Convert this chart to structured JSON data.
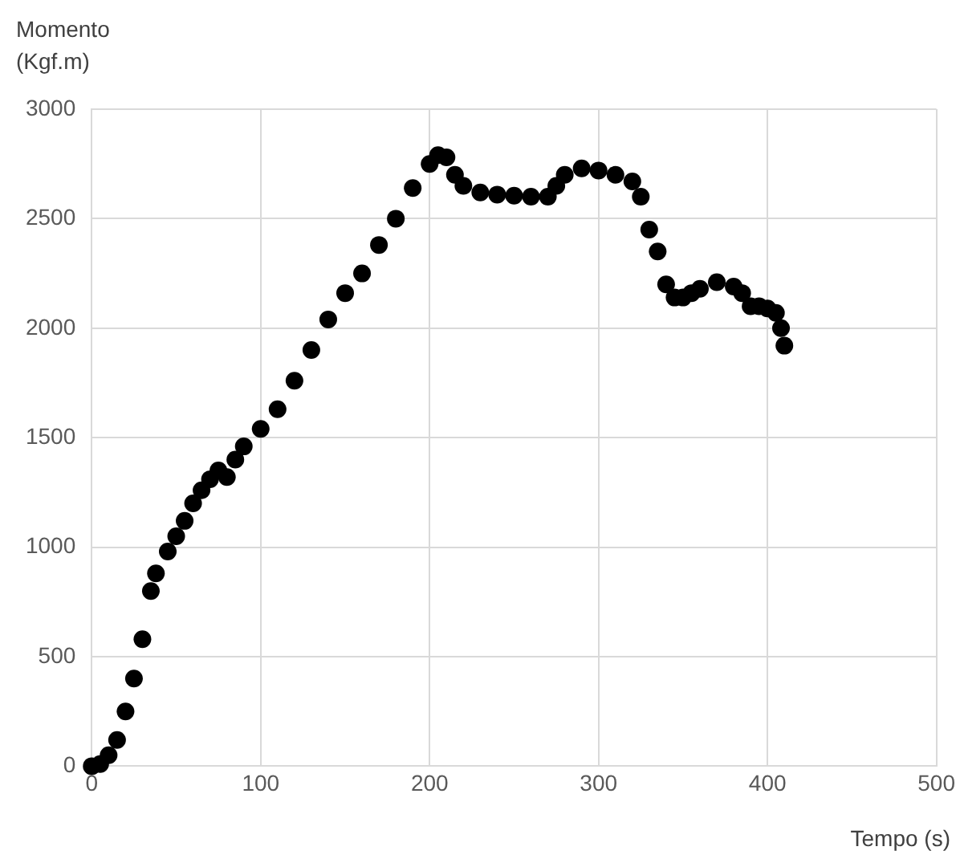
{
  "chart_data": {
    "type": "scatter",
    "ylabel": "Momento (Kgf.m)",
    "xlabel": "Tempo (s)",
    "xlim": [
      0,
      500
    ],
    "xticks": [
      0,
      100,
      200,
      300,
      400,
      500
    ],
    "ylim": [
      0,
      3000
    ],
    "yticks": [
      0,
      500,
      1000,
      1500,
      2000,
      2500,
      3000
    ],
    "grid": true,
    "legend": false,
    "marker": "circle",
    "series": [
      {
        "color": "#000000",
        "x": [
          0,
          5,
          10,
          15,
          20,
          25,
          30,
          35,
          38,
          45,
          50,
          55,
          60,
          65,
          70,
          75,
          80,
          85,
          90,
          100,
          110,
          120,
          130,
          140,
          150,
          160,
          170,
          180,
          190,
          200,
          205,
          210,
          215,
          220,
          230,
          240,
          250,
          260,
          270,
          275,
          280,
          290,
          300,
          310,
          320,
          325,
          330,
          335,
          340,
          345,
          350,
          355,
          360,
          370,
          380,
          385,
          390,
          395,
          400,
          405,
          408,
          410
        ],
        "values": [
          0,
          10,
          50,
          120,
          250,
          400,
          580,
          800,
          880,
          980,
          1050,
          1120,
          1200,
          1260,
          1310,
          1350,
          1320,
          1400,
          1460,
          1540,
          1630,
          1760,
          1900,
          2040,
          2160,
          2250,
          2380,
          2500,
          2640,
          2750,
          2790,
          2780,
          2700,
          2650,
          2620,
          2610,
          2605,
          2600,
          2600,
          2650,
          2700,
          2730,
          2720,
          2700,
          2670,
          2600,
          2450,
          2350,
          2200,
          2140,
          2140,
          2160,
          2180,
          2210,
          2190,
          2160,
          2100,
          2100,
          2090,
          2070,
          2000,
          1920
        ]
      }
    ]
  }
}
